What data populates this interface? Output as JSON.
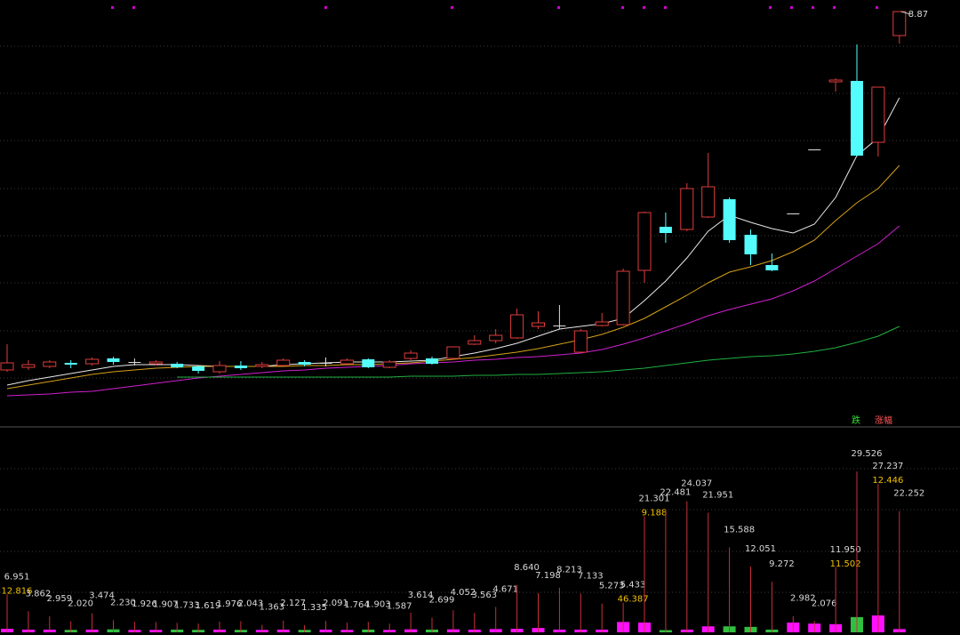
{
  "chart_data": {
    "type": "candlestick",
    "ylim": [
      4.2,
      9.0
    ],
    "up_color": "#e03c3c",
    "down_color": "#54fcfc",
    "doji_color": "#dddddd",
    "open": [
      4.84,
      4.87,
      4.88,
      4.92,
      4.91,
      4.97,
      4.93,
      4.91,
      4.91,
      4.88,
      4.82,
      4.89,
      4.88,
      4.89,
      4.93,
      4.92,
      4.91,
      4.96,
      4.87,
      4.97,
      4.97,
      4.97,
      5.13,
      5.17,
      5.2,
      5.33,
      5.34,
      5.04,
      5.34,
      5.35,
      5.96,
      6.45,
      6.42,
      6.56,
      6.76,
      6.36,
      6.02,
      6.6,
      7.32,
      8.08,
      8.09,
      7.4,
      8.6
    ],
    "high": [
      5.13,
      4.95,
      4.95,
      4.95,
      4.98,
      4.99,
      4.97,
      4.95,
      4.93,
      4.89,
      4.94,
      4.94,
      4.93,
      4.97,
      4.95,
      4.98,
      4.97,
      4.97,
      4.95,
      5.06,
      4.99,
      5.1,
      5.23,
      5.3,
      5.53,
      5.5,
      5.57,
      5.3,
      5.48,
      5.98,
      6.62,
      6.61,
      6.94,
      7.28,
      6.78,
      6.42,
      6.15,
      6.6,
      7.32,
      8.12,
      8.5,
      8.02,
      8.87
    ],
    "low": [
      4.82,
      4.84,
      4.86,
      4.86,
      4.89,
      4.9,
      4.89,
      4.89,
      4.86,
      4.8,
      4.8,
      4.84,
      4.86,
      4.88,
      4.88,
      4.88,
      4.89,
      4.86,
      4.86,
      4.95,
      4.9,
      4.96,
      5.12,
      5.14,
      5.19,
      5.3,
      5.3,
      5.03,
      5.33,
      5.34,
      5.82,
      6.27,
      6.4,
      6.55,
      6.27,
      6.02,
      5.95,
      6.6,
      7.32,
      7.97,
      7.24,
      7.24,
      8.51
    ],
    "close": [
      4.92,
      4.9,
      4.93,
      4.9,
      4.96,
      4.93,
      4.93,
      4.93,
      4.87,
      4.83,
      4.89,
      4.86,
      4.9,
      4.95,
      4.9,
      4.92,
      4.95,
      4.87,
      4.93,
      5.03,
      4.91,
      5.1,
      5.17,
      5.23,
      5.46,
      5.37,
      5.34,
      5.28,
      5.38,
      5.95,
      6.61,
      6.38,
      6.88,
      6.9,
      6.3,
      6.14,
      5.96,
      6.6,
      7.32,
      8.1,
      7.25,
      8.02,
      8.87
    ],
    "ma": [
      {
        "color": "#e8e8e8",
        "values": [
          4.67,
          4.72,
          4.76,
          4.8,
          4.84,
          4.88,
          4.9,
          4.9,
          4.9,
          4.89,
          4.88,
          4.88,
          4.88,
          4.9,
          4.91,
          4.92,
          4.93,
          4.93,
          4.93,
          4.94,
          4.95,
          4.99,
          5.03,
          5.08,
          5.14,
          5.22,
          5.3,
          5.33,
          5.36,
          5.42,
          5.62,
          5.84,
          6.1,
          6.4,
          6.58,
          6.5,
          6.43,
          6.38,
          6.48,
          6.78,
          7.25,
          7.45,
          7.9
        ]
      },
      {
        "color": "#d4a017",
        "values": [
          4.63,
          4.67,
          4.71,
          4.75,
          4.79,
          4.82,
          4.84,
          4.86,
          4.87,
          4.88,
          4.88,
          4.88,
          4.88,
          4.88,
          4.89,
          4.89,
          4.9,
          4.9,
          4.91,
          4.92,
          4.94,
          4.96,
          4.98,
          5.01,
          5.04,
          5.08,
          5.13,
          5.18,
          5.24,
          5.32,
          5.42,
          5.55,
          5.68,
          5.82,
          5.94,
          6.0,
          6.07,
          6.17,
          6.3,
          6.52,
          6.72,
          6.88,
          7.14
        ]
      },
      {
        "color": "#d020d0",
        "values": [
          4.55,
          4.56,
          4.57,
          4.59,
          4.6,
          4.63,
          4.66,
          4.69,
          4.72,
          4.75,
          4.77,
          4.79,
          4.81,
          4.83,
          4.84,
          4.86,
          4.87,
          4.88,
          4.89,
          4.91,
          4.92,
          4.93,
          4.95,
          4.96,
          4.98,
          4.99,
          5.01,
          5.03,
          5.07,
          5.13,
          5.2,
          5.28,
          5.36,
          5.45,
          5.52,
          5.58,
          5.64,
          5.73,
          5.84,
          5.98,
          6.12,
          6.26,
          6.46
        ]
      },
      {
        "color": "#20b040",
        "values": [
          null,
          null,
          null,
          null,
          null,
          null,
          null,
          null,
          4.76,
          4.76,
          4.76,
          4.76,
          4.76,
          4.76,
          4.76,
          4.76,
          4.76,
          4.76,
          4.76,
          4.77,
          4.77,
          4.77,
          4.78,
          4.78,
          4.79,
          4.79,
          4.8,
          4.81,
          4.82,
          4.84,
          4.86,
          4.89,
          4.92,
          4.95,
          4.97,
          4.99,
          5.0,
          5.02,
          5.05,
          5.09,
          5.15,
          5.22,
          5.33
        ]
      }
    ],
    "sub": {
      "ylim": [
        0,
        37.7
      ],
      "spike_color": "#c8303a",
      "spikes": {
        "color": "#d8d8d8",
        "values": [
          6.951,
          3.862,
          2.959,
          2.02,
          3.474,
          2.23,
          1.926,
          1.907,
          1.733,
          1.619,
          1.976,
          2.043,
          1.363,
          2.127,
          1.335,
          2.091,
          1.764,
          1.903,
          1.587,
          3.614,
          2.699,
          4.052,
          3.563,
          4.671,
          8.64,
          7.198,
          8.213,
          7.133,
          5.273,
          5.433,
          21.301,
          22.481,
          24.037,
          21.951,
          15.588,
          12.051,
          9.272,
          2.982,
          2.076,
          11.95,
          29.526,
          27.237,
          22.252
        ],
        "value_labels": [
          "6.951",
          "3.862",
          "2.959",
          "2.020",
          "3.474",
          "2.230",
          "1.926",
          "1.907",
          "1.733",
          "1.619",
          "1.976",
          "2.043",
          "1.363",
          "2.127",
          "1.335",
          "2.091",
          "1.764",
          "1.903",
          "1.587",
          "3.614",
          "2.699",
          "4.052",
          "3.563",
          "4.671",
          "8.640",
          "7.198",
          "8.213",
          "7.133",
          "5.273",
          "5.433",
          "21.301",
          "22.481",
          "24.037",
          "21.951",
          "15.588",
          "12.051",
          "9.272",
          "2.982",
          "2.076",
          "11.950",
          "29.526",
          "27.237",
          "22.252"
        ]
      },
      "marks": {
        "color": "#f0c000",
        "values": [
          12.816,
          null,
          null,
          null,
          null,
          null,
          null,
          null,
          null,
          null,
          null,
          null,
          null,
          null,
          null,
          null,
          null,
          null,
          null,
          null,
          null,
          null,
          null,
          null,
          null,
          null,
          null,
          null,
          null,
          46.387,
          9.188,
          null,
          null,
          null,
          null,
          null,
          null,
          null,
          null,
          11.502,
          null,
          12.446,
          null
        ]
      },
      "volume": {
        "up_color": "#ff10ff",
        "down_color": "#30c040",
        "values": [
          0.65,
          0.5,
          0.5,
          0.45,
          0.5,
          0.55,
          0.45,
          0.45,
          0.5,
          0.45,
          0.5,
          0.45,
          0.45,
          0.5,
          0.45,
          0.5,
          0.45,
          0.5,
          0.45,
          0.55,
          0.5,
          0.55,
          0.5,
          0.6,
          0.65,
          0.8,
          0.5,
          0.5,
          0.5,
          1.9,
          1.8,
          0.4,
          0.5,
          1.1,
          1.1,
          1.0,
          0.5,
          1.8,
          1.6,
          1.5,
          2.8,
          3.1,
          0.6
        ]
      }
    },
    "tags": [
      {
        "text": "跌",
        "color": "#33dd33"
      },
      {
        "text": "涨幅",
        "color": "#ff5555"
      }
    ]
  }
}
